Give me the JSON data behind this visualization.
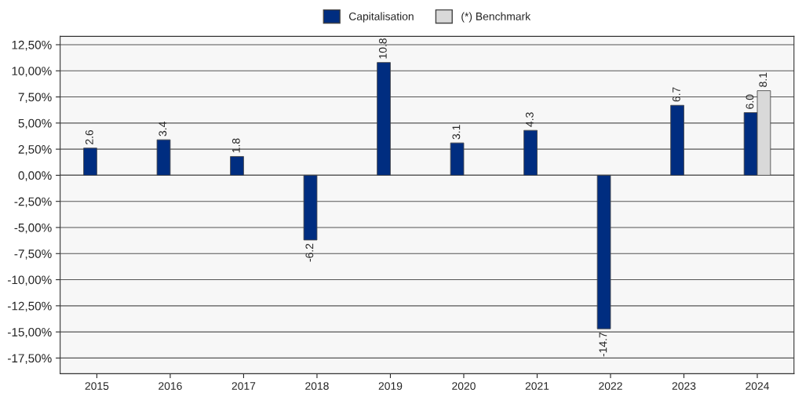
{
  "chart_data": {
    "type": "bar",
    "categories": [
      "2015",
      "2016",
      "2017",
      "2018",
      "2019",
      "2020",
      "2021",
      "2022",
      "2023",
      "2024"
    ],
    "series": [
      {
        "name": "Capitalisation",
        "color": "#002d80",
        "values": [
          2.6,
          3.4,
          1.8,
          -6.2,
          10.8,
          3.1,
          4.3,
          -14.7,
          6.7,
          6.0
        ],
        "value_labels": [
          "2.6",
          "3.4",
          "1.8",
          "-6.2",
          "10.8",
          "3.1",
          "4.3",
          "-14.7",
          "6.7",
          "6.0"
        ]
      },
      {
        "name": "(*) Benchmark",
        "color": "#d9d9d9",
        "values": [
          null,
          null,
          null,
          null,
          null,
          null,
          null,
          null,
          null,
          8.1
        ],
        "value_labels": [
          null,
          null,
          null,
          null,
          null,
          null,
          null,
          null,
          null,
          "8.1"
        ]
      }
    ],
    "ylim": [
      -19.0,
      13.3
    ],
    "yticks": [
      {
        "value": -17.5,
        "label": "-17,50%"
      },
      {
        "value": -15,
        "label": "-15,00%"
      },
      {
        "value": -12.5,
        "label": "-12,50%"
      },
      {
        "value": -10,
        "label": "-10,00%"
      },
      {
        "value": -7.5,
        "label": "-7,50%"
      },
      {
        "value": -5,
        "label": "-5,00%"
      },
      {
        "value": -2.5,
        "label": "-2,50%"
      },
      {
        "value": 0,
        "label": "0,00%"
      },
      {
        "value": 2.5,
        "label": "2,50%"
      },
      {
        "value": 5,
        "label": "5,00%"
      },
      {
        "value": 7.5,
        "label": "7,50%"
      },
      {
        "value": 10,
        "label": "10,00%"
      },
      {
        "value": 12.5,
        "label": "12,50%"
      }
    ],
    "grid": "y",
    "legend": "top"
  }
}
